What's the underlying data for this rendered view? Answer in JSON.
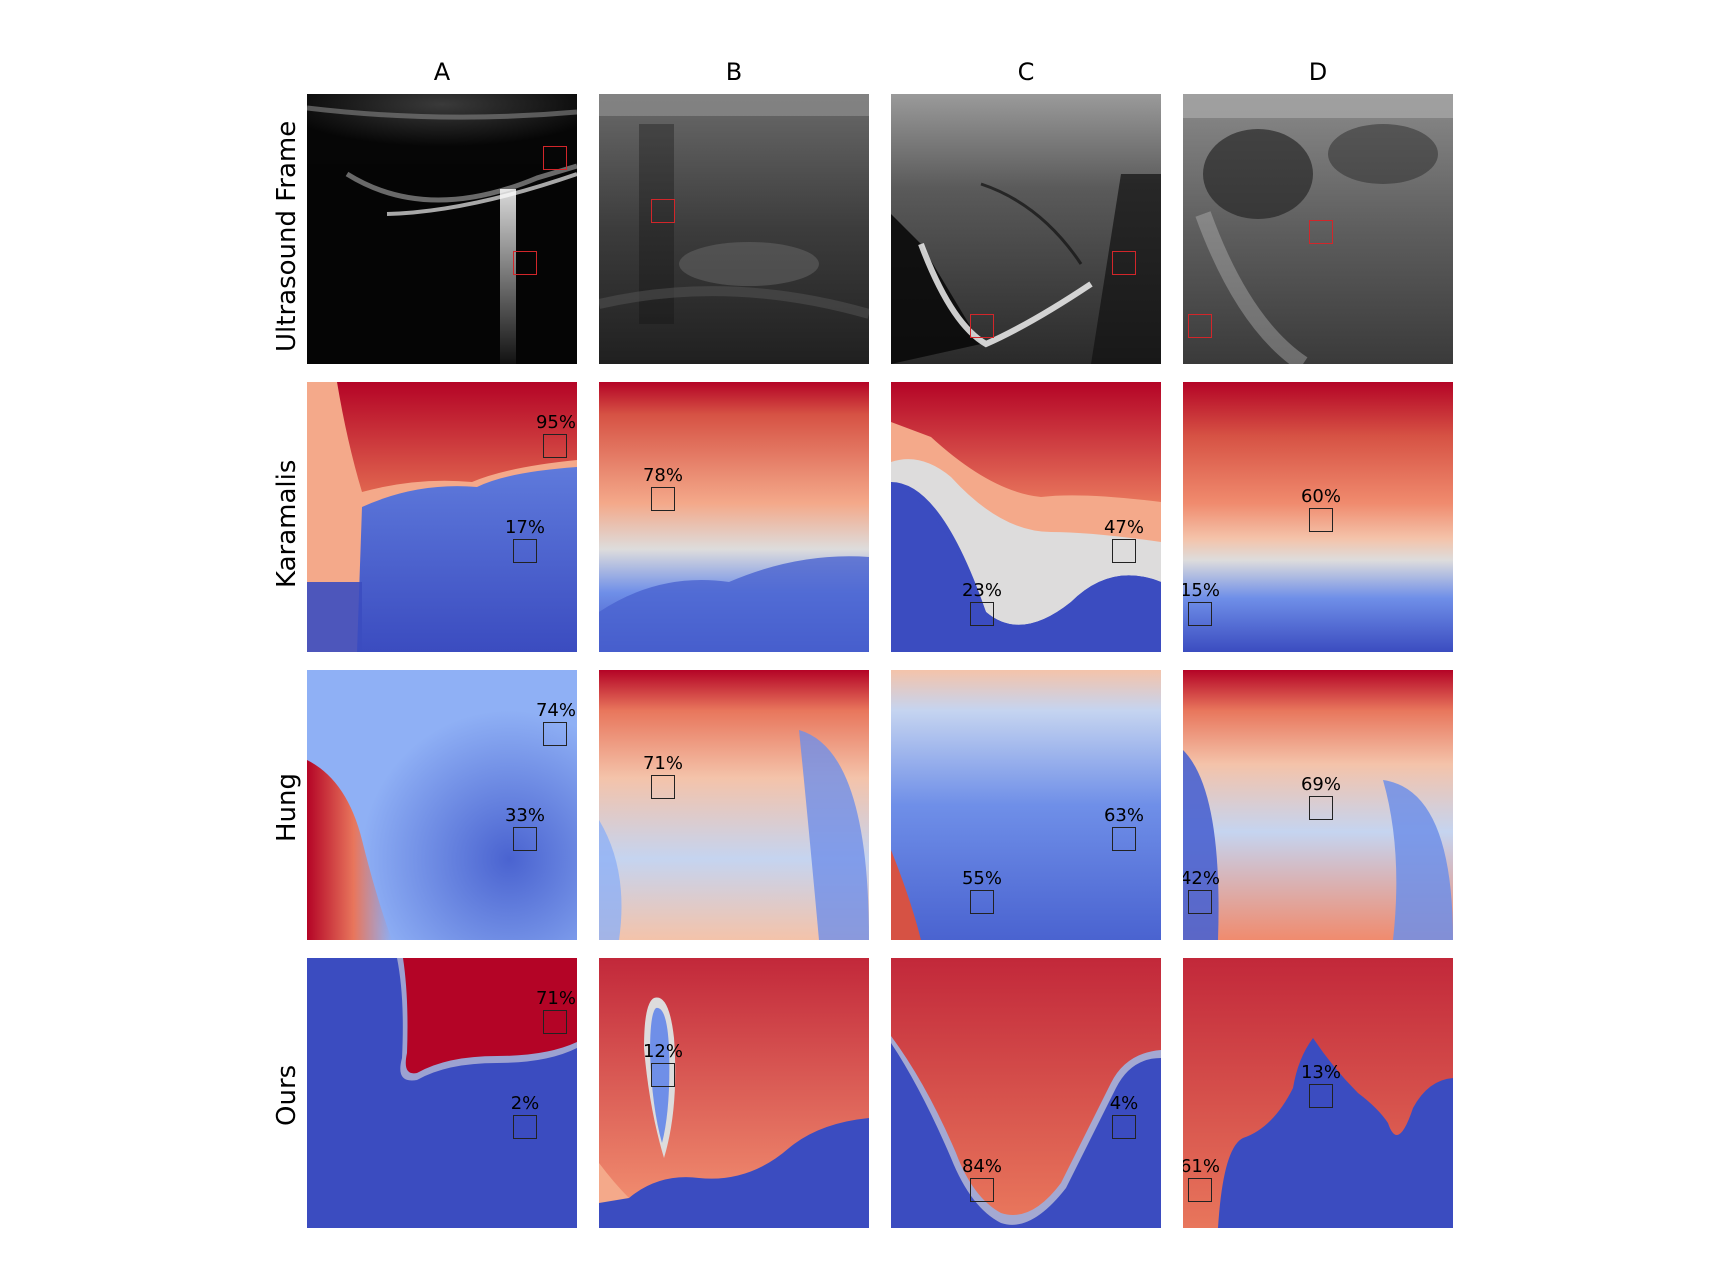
{
  "columns": [
    "A",
    "B",
    "C",
    "D"
  ],
  "rows": [
    "Ultrasound Frame",
    "Karamalis",
    "Hung",
    "Ours"
  ],
  "colormap": {
    "low": "#3b4cc0",
    "mid": "#dddcdc",
    "high": "#b40426"
  },
  "panels": {
    "karamalis": {
      "A": {
        "upper": "95%",
        "lower": "17%"
      },
      "B": {
        "upper": "78%"
      },
      "C": {
        "upper": "47%",
        "lower": "23%"
      },
      "D": {
        "upper": "60%",
        "lower": "15%"
      }
    },
    "hung": {
      "A": {
        "upper": "74%",
        "lower": "33%"
      },
      "B": {
        "upper": "71%"
      },
      "C": {
        "upper": "63%",
        "lower": "55%"
      },
      "D": {
        "upper": "69%",
        "lower": "42%"
      }
    },
    "ours": {
      "A": {
        "upper": "71%",
        "lower": "2%"
      },
      "B": {
        "upper": "12%"
      },
      "C": {
        "upper": "4%",
        "lower": "84%"
      },
      "D": {
        "upper": "13%",
        "lower": "61%"
      }
    }
  }
}
